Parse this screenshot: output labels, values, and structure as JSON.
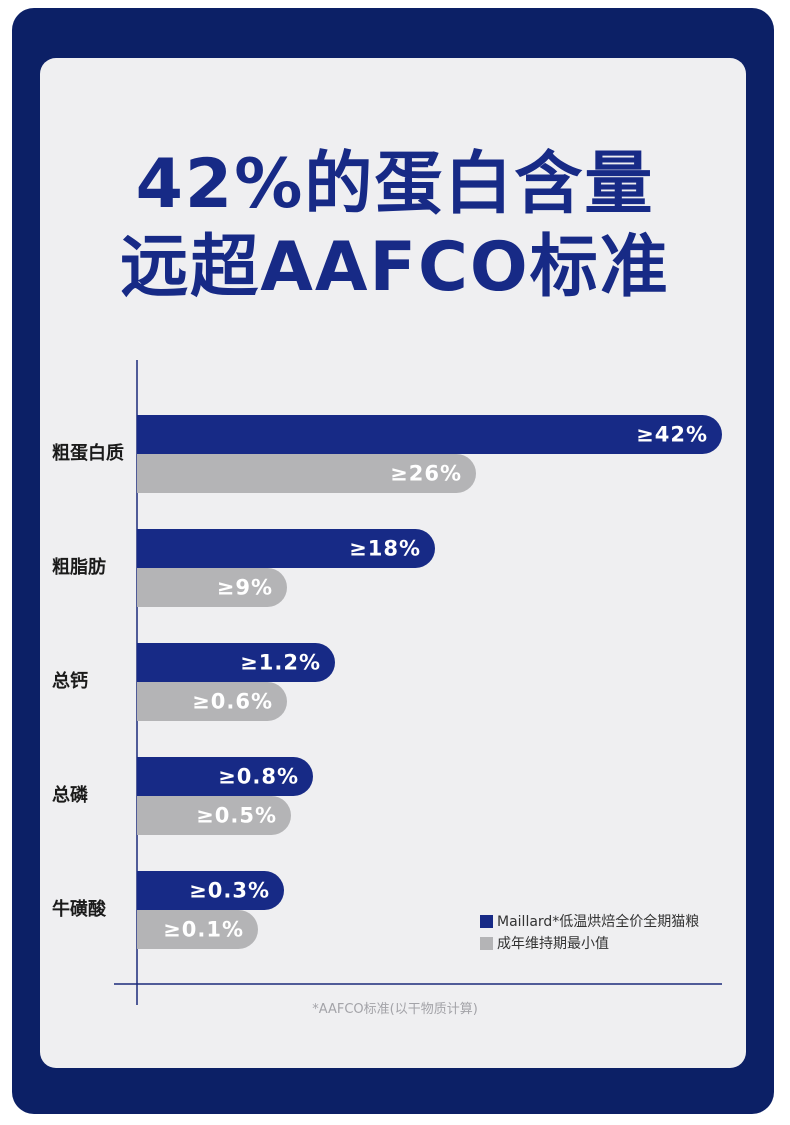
{
  "title_line1": "42%的蛋白含量",
  "title_line2": "远超AAFCO标准",
  "footnote": "*AAFCO标准(以干物质计算)",
  "colors": {
    "frame": "#0c2066",
    "panel": "#efeff1",
    "series_primary": "#172a86",
    "series_secondary": "#b4b4b6",
    "title": "#172a86"
  },
  "chart_data": {
    "type": "bar",
    "orientation": "horizontal",
    "categories": [
      "粗蛋白质",
      "粗脂肪",
      "总钙",
      "总磷",
      "牛磺酸"
    ],
    "series": [
      {
        "name": "Maillard*低温烘焙全价全期猫粮",
        "values": [
          42,
          18,
          1.2,
          0.8,
          0.3
        ],
        "labels": [
          "≥42%",
          "≥18%",
          "≥1.2%",
          "≥0.8%",
          "≥0.3%"
        ]
      },
      {
        "name": "成年维持期最小值",
        "values": [
          26,
          9,
          0.6,
          0.5,
          0.1
        ],
        "labels": [
          "≥26%",
          "≥9%",
          "≥0.6%",
          "≥0.5%",
          "≥0.1%"
        ]
      }
    ],
    "scale": "non-linear (visual)",
    "grid": true,
    "legend_position": "bottom-right"
  }
}
